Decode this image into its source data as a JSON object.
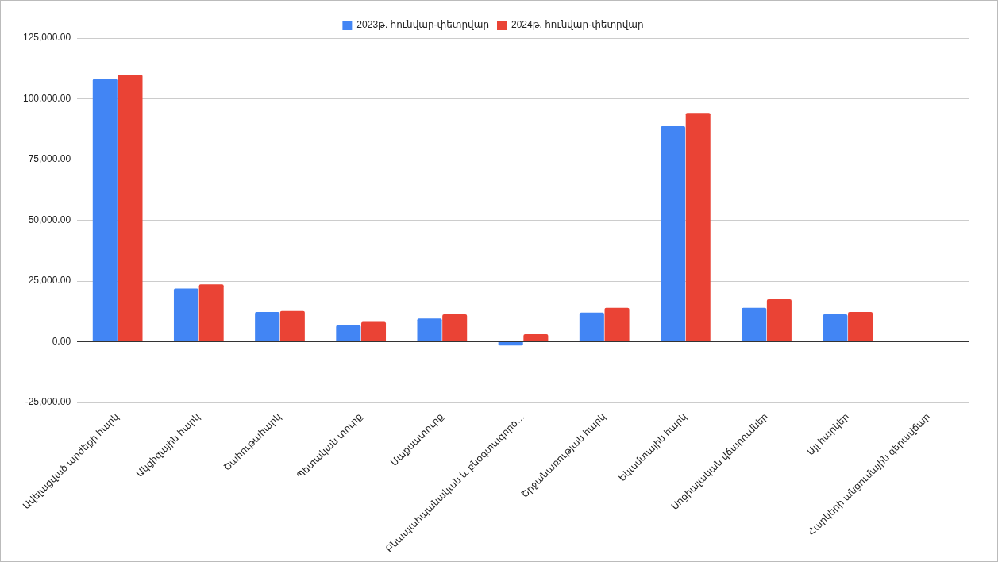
{
  "chart_data": {
    "type": "bar",
    "categories": [
      "Ավելացված արժեքի հարկ",
      "Ակցիզային հարկ",
      "Շահութահարկ",
      "Պետական տուրք",
      "Մաքսատուրք",
      "Բնապահպանական և բնօգտագործ…",
      "Շրջանառության հարկ",
      "Եկամտային հարկ",
      "Սոցիալական վճարումներ",
      "Այլ հարկեր",
      "Հարկերի անցումային գերավճար"
    ],
    "series": [
      {
        "name": "2023թ. հունվար-փետրվար",
        "color": "#4285f4",
        "values": [
          108200,
          21900,
          12300,
          6800,
          9600,
          -1500,
          12000,
          88700,
          14000,
          11300,
          null
        ]
      },
      {
        "name": "2024թ. հունվար-փետրվար",
        "color": "#ea4335",
        "values": [
          110000,
          23600,
          12700,
          8200,
          11300,
          3100,
          14000,
          94200,
          17500,
          12300,
          null
        ]
      }
    ],
    "ylim": [
      -25000,
      125000
    ],
    "yticks": [
      {
        "value": -25000,
        "label": "-25,000.00"
      },
      {
        "value": 0,
        "label": "0.00"
      },
      {
        "value": 25000,
        "label": "25,000.00"
      },
      {
        "value": 50000,
        "label": "50,000.00"
      },
      {
        "value": 75000,
        "label": "75,000.00"
      },
      {
        "value": 100000,
        "label": "100,000.00"
      },
      {
        "value": 125000,
        "label": "125,000.00"
      }
    ],
    "grid": "y",
    "legend": "top"
  }
}
